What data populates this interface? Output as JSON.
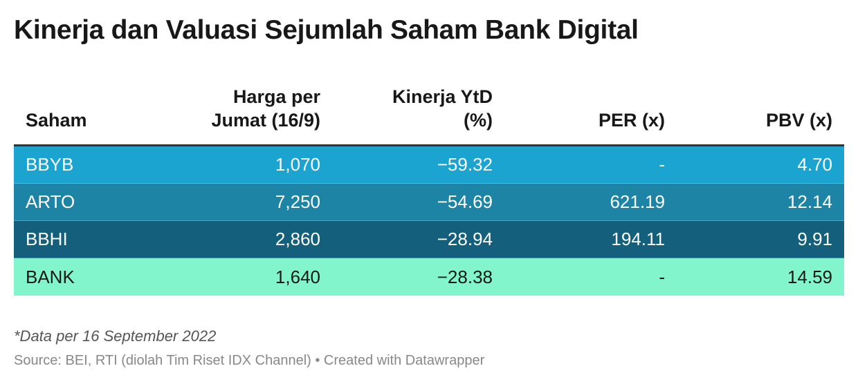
{
  "title": "Kinerja dan Valuasi Sejumlah Saham Bank Digital",
  "footnote": "*Data per 16 September 2022",
  "source": "Source: BEI, RTI (diolah Tim Riset IDX Channel) • Created with Datawrapper",
  "chart_data": {
    "type": "table",
    "title": "Kinerja dan Valuasi Sejumlah Saham Bank Digital",
    "columns": [
      "Saham",
      "Harga per\nJumat (16/9)",
      "Kinerja YtD\n(%)",
      "PER (x)",
      "PBV (x)"
    ],
    "rows": [
      {
        "cells": [
          "BBYB",
          "1,070",
          "−59.32",
          "-",
          "4.70"
        ],
        "bg": "#1ba4d0",
        "fg": "#ffffff"
      },
      {
        "cells": [
          "ARTO",
          "7,250",
          "−54.69",
          "621.19",
          "12.14"
        ],
        "bg": "#1e84a6",
        "fg": "#ffffff"
      },
      {
        "cells": [
          "BBHI",
          "2,860",
          "−28.94",
          "194.11",
          "9.91"
        ],
        "bg": "#14607c",
        "fg": "#ffffff"
      },
      {
        "cells": [
          "BANK",
          "1,640",
          "−28.38",
          "-",
          "14.59"
        ],
        "bg": "#82f5cd",
        "fg": "#181818"
      }
    ]
  }
}
